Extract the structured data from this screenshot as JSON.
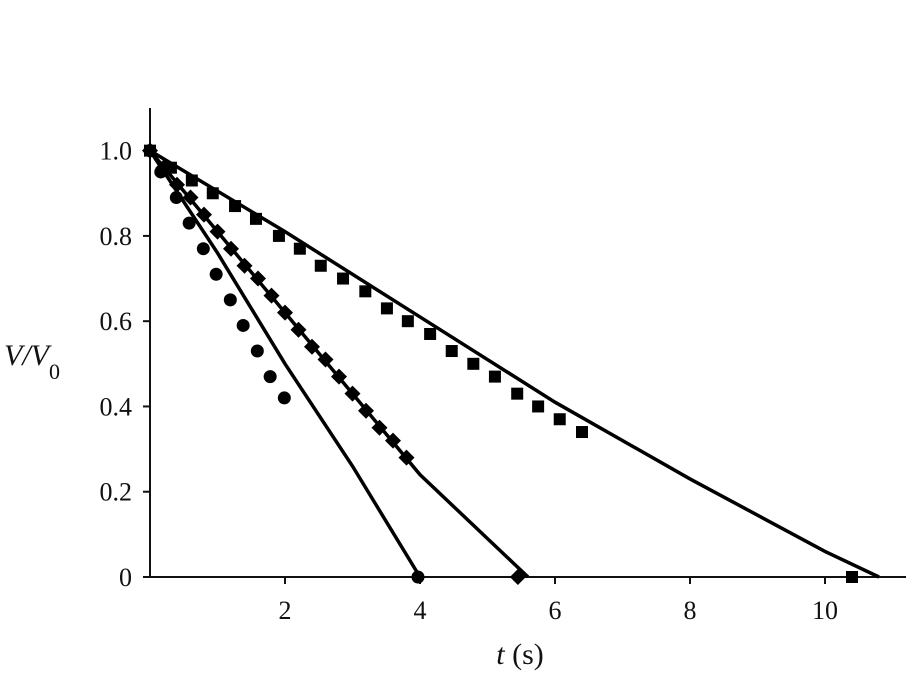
{
  "chart_data": {
    "type": "scatter",
    "xlabel": {
      "var": "t",
      "unit": "(s)"
    },
    "ylabel": {
      "main": "V/V",
      "sub": "0"
    },
    "xlim": [
      0,
      11.2
    ],
    "ylim": [
      0,
      1.1
    ],
    "xticks": [
      2,
      4,
      6,
      8,
      10
    ],
    "yticks": [
      0,
      0.2,
      0.4,
      0.6,
      0.8,
      {
        "value": 1,
        "label": "1.0"
      }
    ],
    "series": [
      {
        "style": "marker",
        "marker": "circle",
        "color": "#000000",
        "x": [
          0,
          0.16,
          0.39,
          0.58,
          0.79,
          0.98,
          1.19,
          1.38,
          1.59,
          1.78,
          1.99,
          3.97
        ],
        "values": [
          1,
          0.95,
          0.89,
          0.83,
          0.77,
          0.71,
          0.65,
          0.59,
          0.53,
          0.47,
          0.42,
          0
        ]
      },
      {
        "style": "marker",
        "marker": "diamond",
        "color": "#000000",
        "x": [
          0,
          0.2,
          0.4,
          0.6,
          0.8,
          1.0,
          1.2,
          1.4,
          1.6,
          1.8,
          2.0,
          2.2,
          2.4,
          2.6,
          2.8,
          3.0,
          3.2,
          3.4,
          3.6,
          3.8,
          5.45
        ],
        "values": [
          1,
          0.96,
          0.92,
          0.89,
          0.85,
          0.81,
          0.77,
          0.73,
          0.7,
          0.66,
          0.62,
          0.58,
          0.54,
          0.51,
          0.47,
          0.43,
          0.39,
          0.35,
          0.32,
          0.28,
          0
        ]
      },
      {
        "style": "marker",
        "marker": "square",
        "color": "#000000",
        "x": [
          0,
          0.31,
          0.62,
          0.93,
          1.26,
          1.57,
          1.91,
          2.22,
          2.53,
          2.86,
          3.19,
          3.51,
          3.82,
          4.15,
          4.47,
          4.79,
          5.11,
          5.44,
          5.75,
          6.07,
          6.4,
          10.4
        ],
        "values": [
          1,
          0.96,
          0.93,
          0.9,
          0.87,
          0.84,
          0.8,
          0.77,
          0.73,
          0.7,
          0.67,
          0.63,
          0.6,
          0.57,
          0.53,
          0.5,
          0.47,
          0.43,
          0.4,
          0.37,
          0.34,
          0
        ]
      },
      {
        "style": "line",
        "color": "#000000",
        "x": [
          0,
          1,
          2,
          3,
          4
        ],
        "values": [
          1,
          0.76,
          0.5,
          0.26,
          0
        ]
      },
      {
        "style": "line",
        "color": "#000000",
        "x": [
          0,
          1,
          2,
          3,
          4,
          5,
          5.6
        ],
        "values": [
          1,
          0.81,
          0.62,
          0.43,
          0.24,
          0.09,
          0
        ]
      },
      {
        "style": "line",
        "color": "#000000",
        "x": [
          0,
          2,
          4,
          6,
          8,
          10,
          10.8
        ],
        "values": [
          1,
          0.81,
          0.61,
          0.41,
          0.23,
          0.06,
          0
        ]
      }
    ]
  }
}
